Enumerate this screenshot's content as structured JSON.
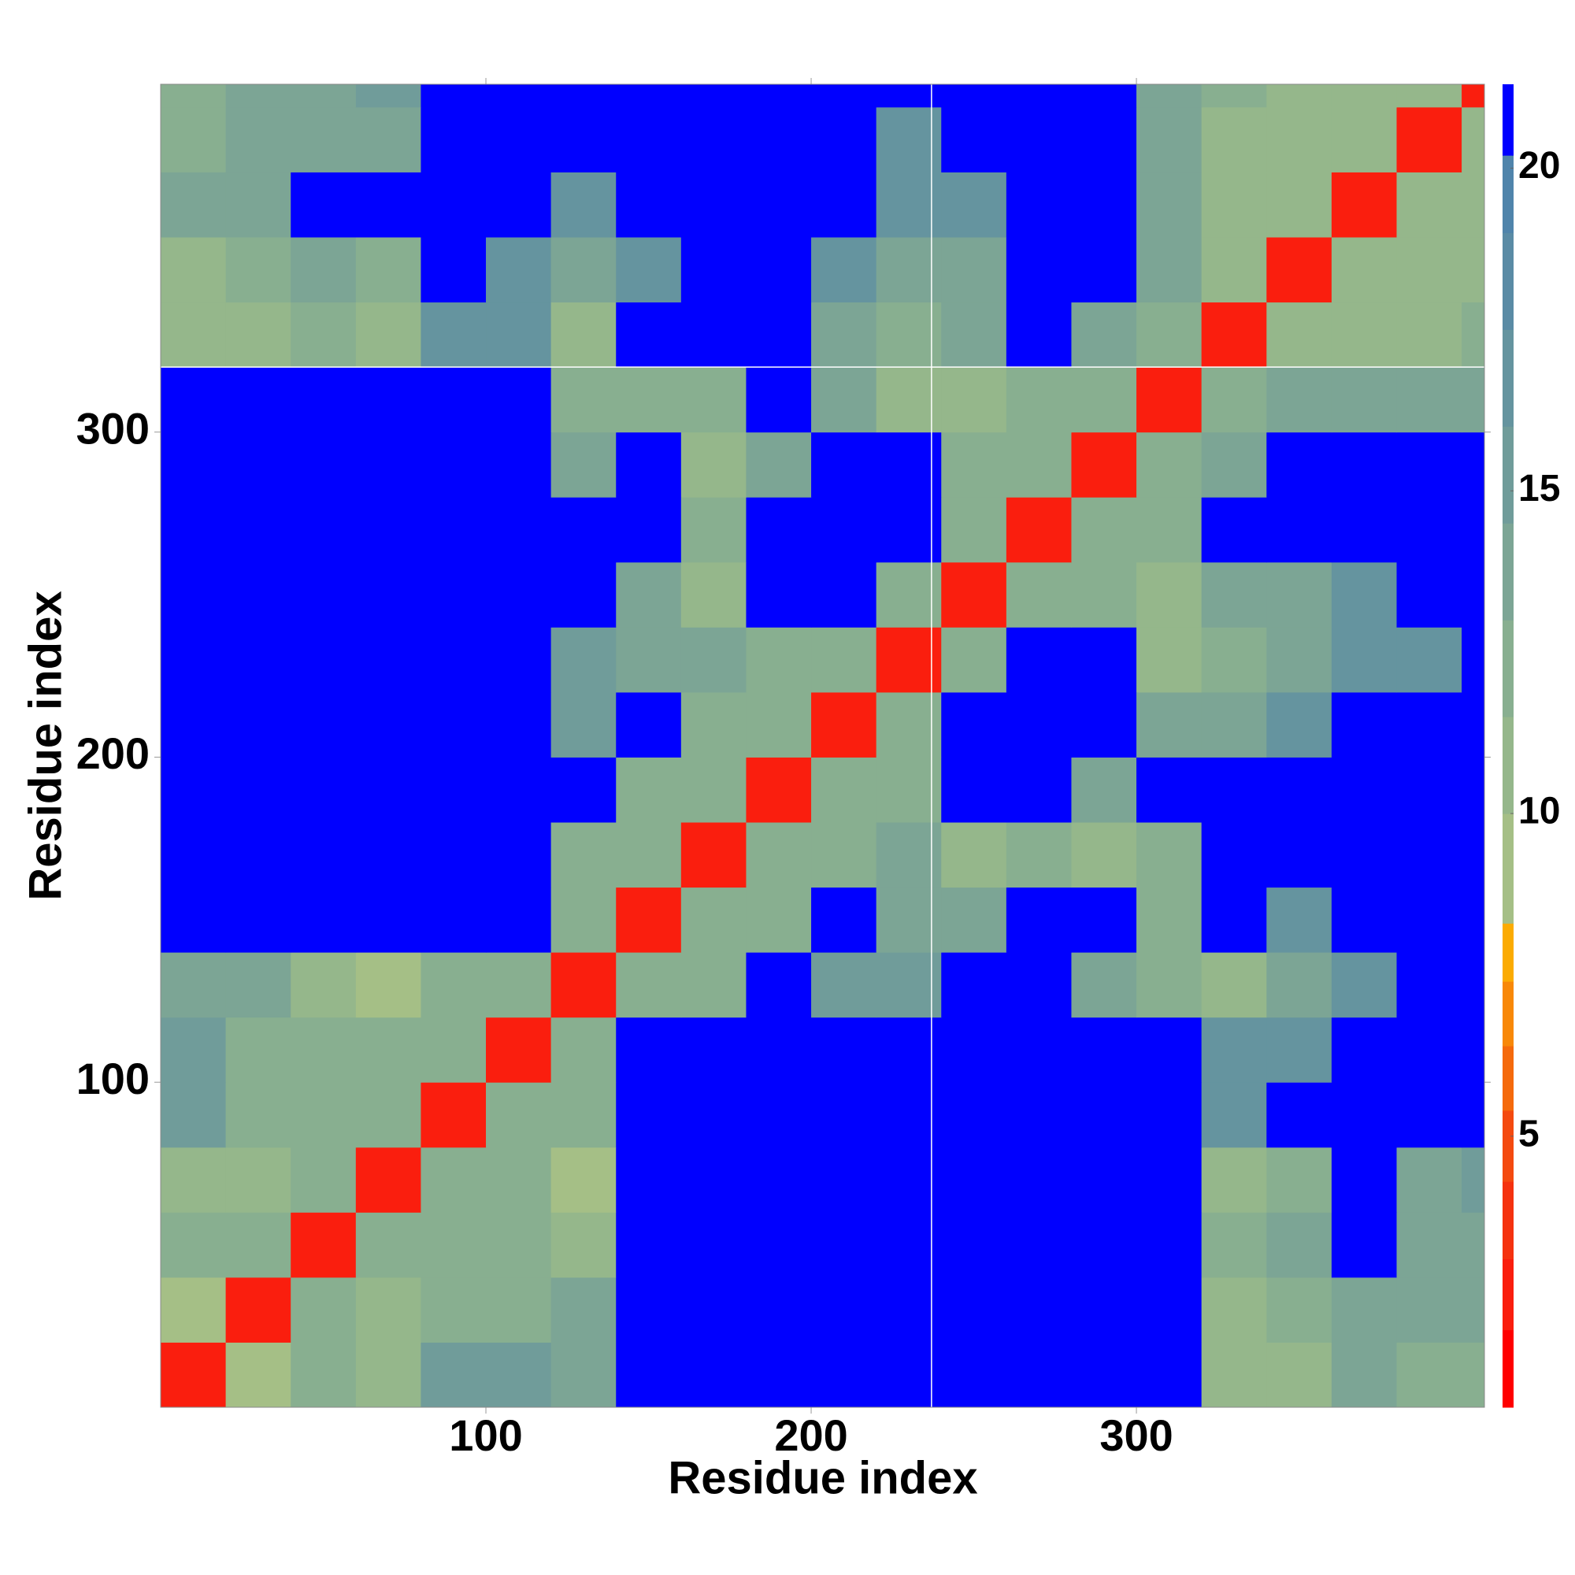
{
  "chart_data": {
    "type": "heatmap",
    "xlabel": "Residue index",
    "ylabel": "Residue index",
    "xlim": [
      0,
      407
    ],
    "ylim": [
      0,
      407
    ],
    "xticks": [
      100,
      200,
      300
    ],
    "yticks": [
      100,
      200,
      300
    ],
    "x_edges": [
      0,
      20,
      40,
      60,
      80,
      100,
      120,
      140,
      160,
      180,
      200,
      220,
      240,
      260,
      280,
      300,
      320,
      340,
      360,
      380,
      400,
      407
    ],
    "y_edges": [
      0,
      20,
      40,
      60,
      80,
      100,
      120,
      140,
      160,
      180,
      200,
      220,
      240,
      260,
      280,
      300,
      320,
      340,
      360,
      380,
      400,
      407
    ],
    "z": [
      [
        3,
        9,
        12,
        10,
        15,
        15,
        13,
        21,
        21,
        21,
        21,
        21,
        21,
        21,
        21,
        21,
        10,
        10,
        13,
        12,
        12
      ],
      [
        9,
        3,
        12,
        10,
        12,
        12,
        13,
        21,
        21,
        21,
        21,
        21,
        21,
        21,
        21,
        21,
        11,
        12,
        14,
        13,
        13
      ],
      [
        12,
        12,
        3,
        12,
        12,
        12,
        10,
        21,
        21,
        21,
        21,
        21,
        21,
        21,
        21,
        21,
        12,
        13,
        21,
        13,
        14
      ],
      [
        10,
        10,
        12,
        3,
        12,
        12,
        9,
        21,
        21,
        21,
        21,
        21,
        21,
        21,
        21,
        21,
        10,
        12,
        21,
        14,
        15
      ],
      [
        15,
        12,
        12,
        12,
        3,
        12,
        12,
        21,
        21,
        21,
        21,
        21,
        21,
        21,
        21,
        21,
        16,
        21,
        21,
        21,
        21
      ],
      [
        15,
        12,
        12,
        12,
        12,
        3,
        12,
        21,
        21,
        21,
        21,
        21,
        21,
        21,
        21,
        21,
        16,
        16,
        21,
        21,
        21
      ],
      [
        13,
        13,
        10,
        9,
        12,
        12,
        3,
        12,
        12,
        21,
        15,
        15,
        21,
        21,
        14,
        12,
        10,
        14,
        17,
        21,
        21
      ],
      [
        21,
        21,
        21,
        21,
        21,
        21,
        12,
        3,
        12,
        12,
        21,
        14,
        14,
        21,
        21,
        12,
        21,
        16,
        21,
        21,
        21
      ],
      [
        21,
        21,
        21,
        21,
        21,
        21,
        12,
        12,
        3,
        12,
        12,
        14,
        11,
        12,
        11,
        12,
        21,
        21,
        21,
        21,
        21
      ],
      [
        21,
        21,
        21,
        21,
        21,
        21,
        21,
        12,
        12,
        3,
        12,
        12,
        21,
        21,
        14,
        21,
        21,
        21,
        21,
        21,
        21
      ],
      [
        21,
        21,
        21,
        21,
        21,
        21,
        15,
        21,
        12,
        12,
        3,
        12,
        21,
        21,
        21,
        14,
        14,
        16,
        21,
        21,
        21
      ],
      [
        21,
        21,
        21,
        21,
        21,
        21,
        15,
        14,
        14,
        12,
        12,
        3,
        12,
        21,
        21,
        11,
        12,
        14,
        16,
        16,
        21
      ],
      [
        21,
        21,
        21,
        21,
        21,
        21,
        21,
        14,
        11,
        21,
        21,
        12,
        3,
        12,
        12,
        11,
        14,
        14,
        17,
        21,
        21
      ],
      [
        21,
        21,
        21,
        21,
        21,
        21,
        21,
        21,
        12,
        21,
        21,
        21,
        12,
        3,
        12,
        12,
        21,
        21,
        21,
        21,
        21
      ],
      [
        21,
        21,
        21,
        21,
        21,
        21,
        14,
        21,
        11,
        14,
        21,
        21,
        12,
        12,
        3,
        12,
        14,
        21,
        21,
        21,
        21
      ],
      [
        21,
        21,
        21,
        21,
        21,
        21,
        12,
        12,
        12,
        21,
        14,
        11,
        11,
        12,
        12,
        3,
        12,
        13,
        13,
        13,
        14
      ],
      [
        10,
        11,
        12,
        10,
        16,
        16,
        10,
        21,
        21,
        21,
        14,
        12,
        14,
        21,
        14,
        12,
        3,
        10,
        10,
        11,
        12
      ],
      [
        10,
        12,
        13,
        12,
        21,
        16,
        14,
        16,
        21,
        21,
        16,
        14,
        14,
        21,
        21,
        13,
        10,
        3,
        10,
        10,
        11
      ],
      [
        13,
        14,
        21,
        21,
        21,
        21,
        17,
        21,
        21,
        21,
        21,
        16,
        17,
        21,
        21,
        13,
        10,
        10,
        3,
        10,
        11
      ],
      [
        12,
        13,
        13,
        14,
        21,
        21,
        21,
        21,
        21,
        21,
        21,
        16,
        21,
        21,
        21,
        13,
        11,
        10,
        10,
        3,
        11
      ],
      [
        12,
        13,
        14,
        15,
        21,
        21,
        21,
        21,
        21,
        21,
        21,
        21,
        21,
        21,
        21,
        14,
        12,
        11,
        11,
        11,
        3
      ]
    ],
    "zlim": [
      0.8,
      21.3
    ],
    "zticks": [
      5,
      10,
      15,
      20
    ],
    "colorscale": [
      {
        "from": 0.8,
        "color": "#ff0000"
      },
      {
        "from": 2.0,
        "color": "#fa1e0e"
      },
      {
        "from": 3.1,
        "color": "#f5320f"
      },
      {
        "from": 4.3,
        "color": "#f44a10"
      },
      {
        "from": 5.4,
        "color": "#f56a0c"
      },
      {
        "from": 6.4,
        "color": "#f88808"
      },
      {
        "from": 7.4,
        "color": "#fbab02"
      },
      {
        "from": 8.3,
        "color": "#a5bf86"
      },
      {
        "from": 10.0,
        "color": "#95b78b"
      },
      {
        "from": 11.5,
        "color": "#88af90"
      },
      {
        "from": 13.0,
        "color": "#7ca595"
      },
      {
        "from": 14.5,
        "color": "#709c9a"
      },
      {
        "from": 16.0,
        "color": "#65949f"
      },
      {
        "from": 17.5,
        "color": "#5a8ba5"
      },
      {
        "from": 19.0,
        "color": "#5084ab"
      },
      {
        "from": 20.2,
        "color": "#0000ff"
      }
    ],
    "crosshair": {
      "x": 237,
      "y": 320
    }
  }
}
